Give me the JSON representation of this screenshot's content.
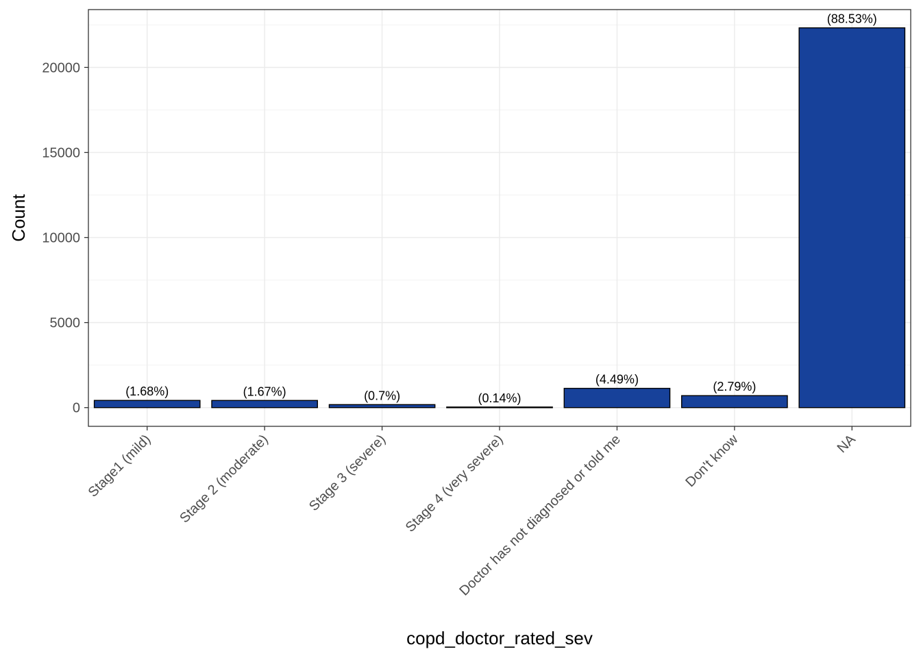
{
  "chart_data": {
    "type": "bar",
    "title": "",
    "xlabel": "copd_doctor_rated_sev",
    "ylabel": "Count",
    "categories": [
      "Stage1 (mild)",
      "Stage 2 (moderate)",
      "Stage 3 (severe)",
      "Stage 4 (very severe)",
      "Doctor has not diagnosed or told me",
      "Don't know",
      "NA"
    ],
    "values": [
      424,
      421,
      177,
      35,
      1133,
      704,
      22328
    ],
    "labels": [
      "(1.68%)",
      "(1.67%)",
      "(0.7%)",
      "(0.14%)",
      "(4.49%)",
      "(2.79%)",
      "(88.53%)"
    ],
    "yticks": [
      0,
      5000,
      10000,
      15000,
      20000
    ],
    "ytick_labels": [
      "0",
      "5000",
      "10000",
      "15000",
      "20000"
    ],
    "ylim": [
      -1100,
      23400
    ],
    "grid": true,
    "bar_color": "#17419a",
    "bar_outline": "#000000"
  }
}
